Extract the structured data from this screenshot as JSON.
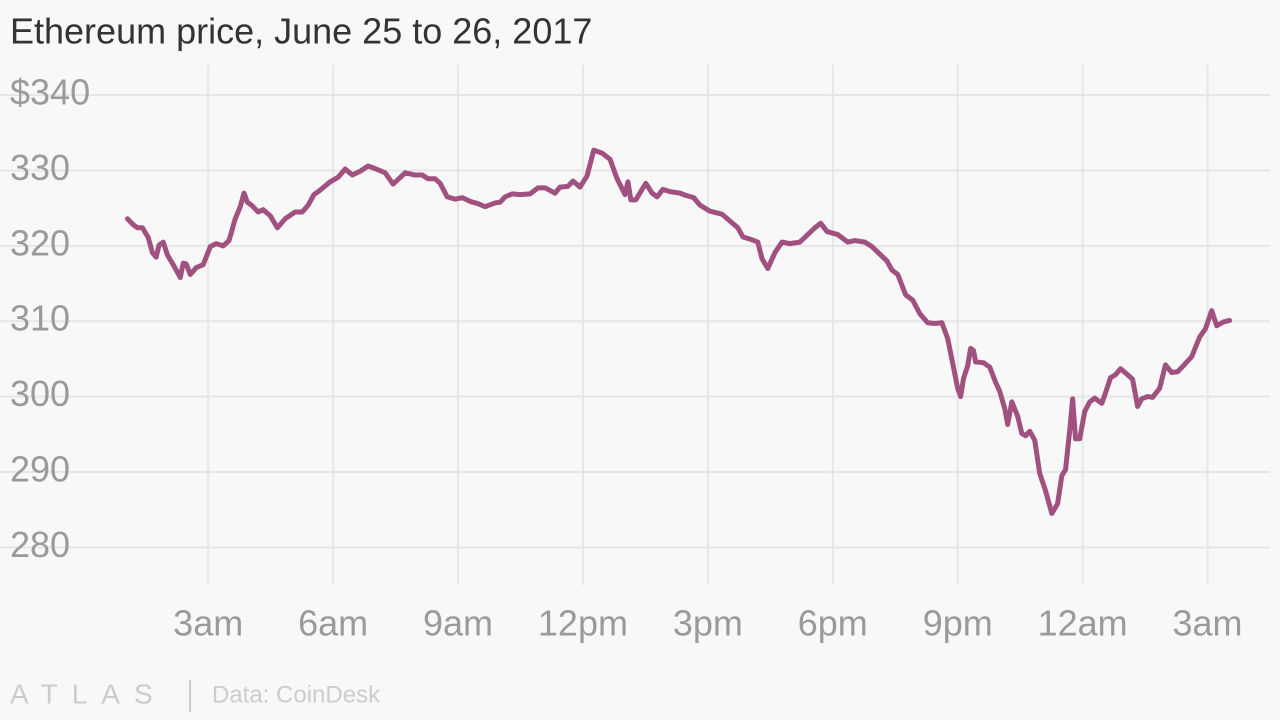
{
  "chart_data": {
    "type": "line",
    "title": "Ethereum price, June 25 to 26, 2017",
    "source": "Data: CoinDesk",
    "logo": "ATLAS",
    "color": "#a0517f",
    "grid": true,
    "xlim": [
      -2,
      28.5
    ],
    "ylim": [
      275,
      344
    ],
    "xticks": [
      {
        "value": 3,
        "label": "3am"
      },
      {
        "value": 6,
        "label": "6am"
      },
      {
        "value": 9,
        "label": "9am"
      },
      {
        "value": 12,
        "label": "12pm"
      },
      {
        "value": 15,
        "label": "3pm"
      },
      {
        "value": 18,
        "label": "6pm"
      },
      {
        "value": 21,
        "label": "9pm"
      },
      {
        "value": 24,
        "label": "12am"
      },
      {
        "value": 27,
        "label": "3am"
      }
    ],
    "yticks": [
      280,
      290,
      300,
      310,
      320,
      330,
      {
        "value": 340,
        "label": "$340"
      }
    ],
    "x": [
      1.06,
      1.2,
      1.3,
      1.42,
      1.56,
      1.66,
      1.75,
      1.82,
      1.92,
      2.02,
      2.16,
      2.33,
      2.4,
      2.47,
      2.57,
      2.71,
      2.88,
      3.05,
      3.19,
      3.36,
      3.5,
      3.65,
      3.77,
      3.86,
      3.94,
      4.06,
      4.2,
      4.32,
      4.49,
      4.66,
      4.85,
      5.09,
      5.26,
      5.4,
      5.54,
      5.69,
      5.93,
      6.12,
      6.29,
      6.46,
      6.65,
      6.84,
      7.03,
      7.25,
      7.44,
      7.73,
      7.97,
      8.14,
      8.28,
      8.45,
      8.57,
      8.74,
      8.93,
      9.1,
      9.29,
      9.48,
      9.65,
      9.89,
      10.01,
      10.13,
      10.3,
      10.49,
      10.73,
      10.92,
      11.09,
      11.33,
      11.45,
      11.64,
      11.76,
      11.93,
      12.1,
      12.26,
      12.46,
      12.65,
      12.82,
      13.01,
      13.08,
      13.15,
      13.27,
      13.42,
      13.51,
      13.66,
      13.78,
      13.92,
      14.09,
      14.33,
      14.47,
      14.66,
      14.81,
      15.05,
      15.34,
      15.53,
      15.72,
      15.84,
      16.01,
      16.2,
      16.3,
      16.44,
      16.61,
      16.78,
      16.97,
      17.09,
      17.21,
      17.4,
      17.57,
      17.71,
      17.86,
      18.12,
      18.36,
      18.53,
      18.77,
      18.94,
      19.13,
      19.3,
      19.42,
      19.56,
      19.75,
      19.92,
      20.09,
      20.28,
      20.45,
      20.62,
      20.76,
      20.88,
      21,
      21.07,
      21.14,
      21.24,
      21.31,
      21.38,
      21.43,
      21.62,
      21.77,
      21.91,
      22.01,
      22.13,
      22.2,
      22.3,
      22.44,
      22.54,
      22.63,
      22.73,
      22.85,
      22.97,
      23.11,
      23.26,
      23.4,
      23.5,
      23.59,
      23.69,
      23.76,
      23.83,
      23.93,
      24.05,
      24.17,
      24.29,
      24.46,
      24.55,
      24.67,
      24.79,
      24.91,
      25.06,
      25.2,
      25.32,
      25.42,
      25.56,
      25.68,
      25.85,
      25.99,
      26.14,
      26.28,
      26.42,
      26.62,
      26.81,
      26.95,
      27.1,
      27.22,
      27.38,
      27.53
    ],
    "values": [
      323.6,
      322.8,
      322.4,
      322.4,
      321.1,
      319.1,
      318.5,
      320.1,
      320.5,
      318.8,
      317.5,
      315.8,
      317.7,
      317.6,
      316.2,
      317.1,
      317.5,
      319.9,
      320.3,
      320,
      320.7,
      323.6,
      325.2,
      327,
      325.8,
      325.3,
      324.5,
      324.8,
      324,
      322.4,
      323.6,
      324.5,
      324.5,
      325.4,
      326.8,
      327.4,
      328.5,
      329.1,
      330.2,
      329.4,
      329.9,
      330.6,
      330.2,
      329.7,
      328.2,
      329.7,
      329.4,
      329.4,
      328.9,
      328.9,
      328.3,
      326.5,
      326.2,
      326.4,
      325.9,
      325.6,
      325.2,
      325.7,
      325.8,
      326.5,
      326.9,
      326.8,
      326.9,
      327.7,
      327.7,
      327,
      327.8,
      327.9,
      328.6,
      327.8,
      329.3,
      332.7,
      332.3,
      331.5,
      328.9,
      326.8,
      328.5,
      326.1,
      326.1,
      327.5,
      328.3,
      327,
      326.5,
      327.5,
      327.2,
      327,
      326.7,
      326.4,
      325.4,
      324.6,
      324.2,
      323.3,
      322.4,
      321.2,
      320.9,
      320.5,
      318.3,
      317,
      319.1,
      320.5,
      320.3,
      320.4,
      320.5,
      321.5,
      322.4,
      323,
      321.9,
      321.5,
      320.5,
      320.7,
      320.5,
      319.9,
      318.9,
      318,
      316.8,
      316.2,
      313.5,
      312.8,
      311,
      309.8,
      309.7,
      309.8,
      307.7,
      304.4,
      301.1,
      300,
      302.4,
      304.1,
      306.4,
      306.1,
      304.6,
      304.5,
      303.9,
      301.9,
      300.7,
      298.4,
      296.3,
      299.3,
      297.4,
      295.1,
      294.8,
      295.4,
      294.2,
      289.8,
      287.5,
      284.5,
      285.8,
      289.5,
      290.3,
      295.5,
      299.7,
      294.4,
      294.4,
      298,
      299.3,
      299.8,
      299.1,
      300.5,
      302.5,
      302.9,
      303.7,
      303,
      302.3,
      298.7,
      299.7,
      300,
      299.9,
      301.1,
      304.2,
      303.2,
      303.3,
      304.1,
      305.3,
      307.9,
      309,
      311.4,
      309.4,
      309.9,
      310.1
    ]
  }
}
